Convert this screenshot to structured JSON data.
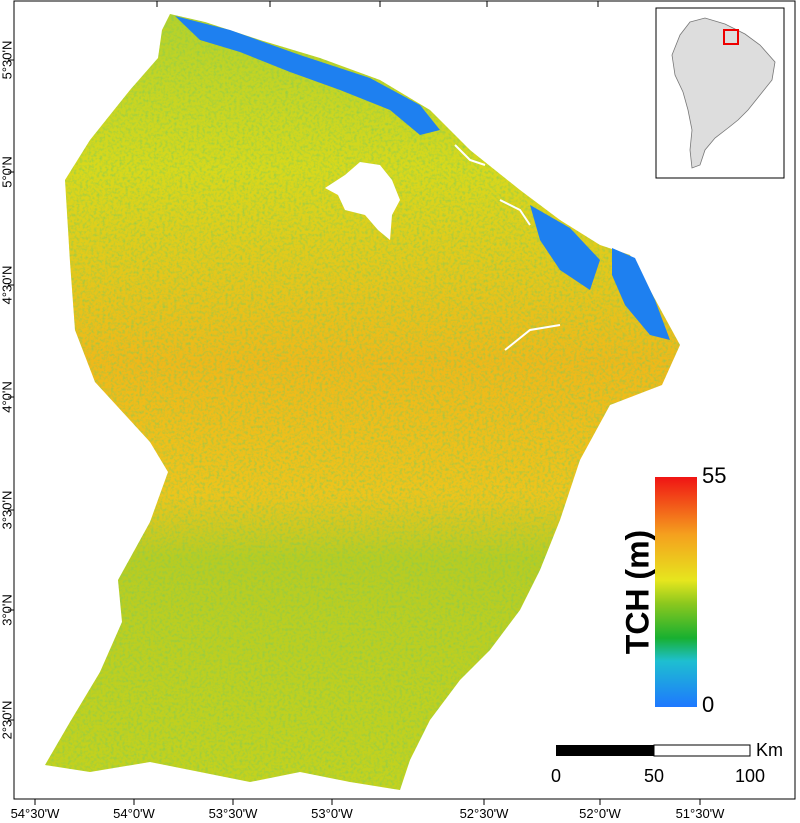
{
  "latitude_labels": [
    "5°30'N",
    "5°0'N",
    "4°30'N",
    "4°0'N",
    "3°30'N",
    "3°0'N",
    "2°30'N"
  ],
  "longitude_labels": [
    "54°30'W",
    "54°0'W",
    "53°30'W",
    "53°0'W",
    "52°30'W",
    "52°0'W",
    "51°30'W"
  ],
  "legend": {
    "title": "TCH (m)",
    "max": 55,
    "min": 0
  },
  "scale_bar": {
    "unit": "Km",
    "labels": [
      0,
      50,
      100
    ]
  }
}
